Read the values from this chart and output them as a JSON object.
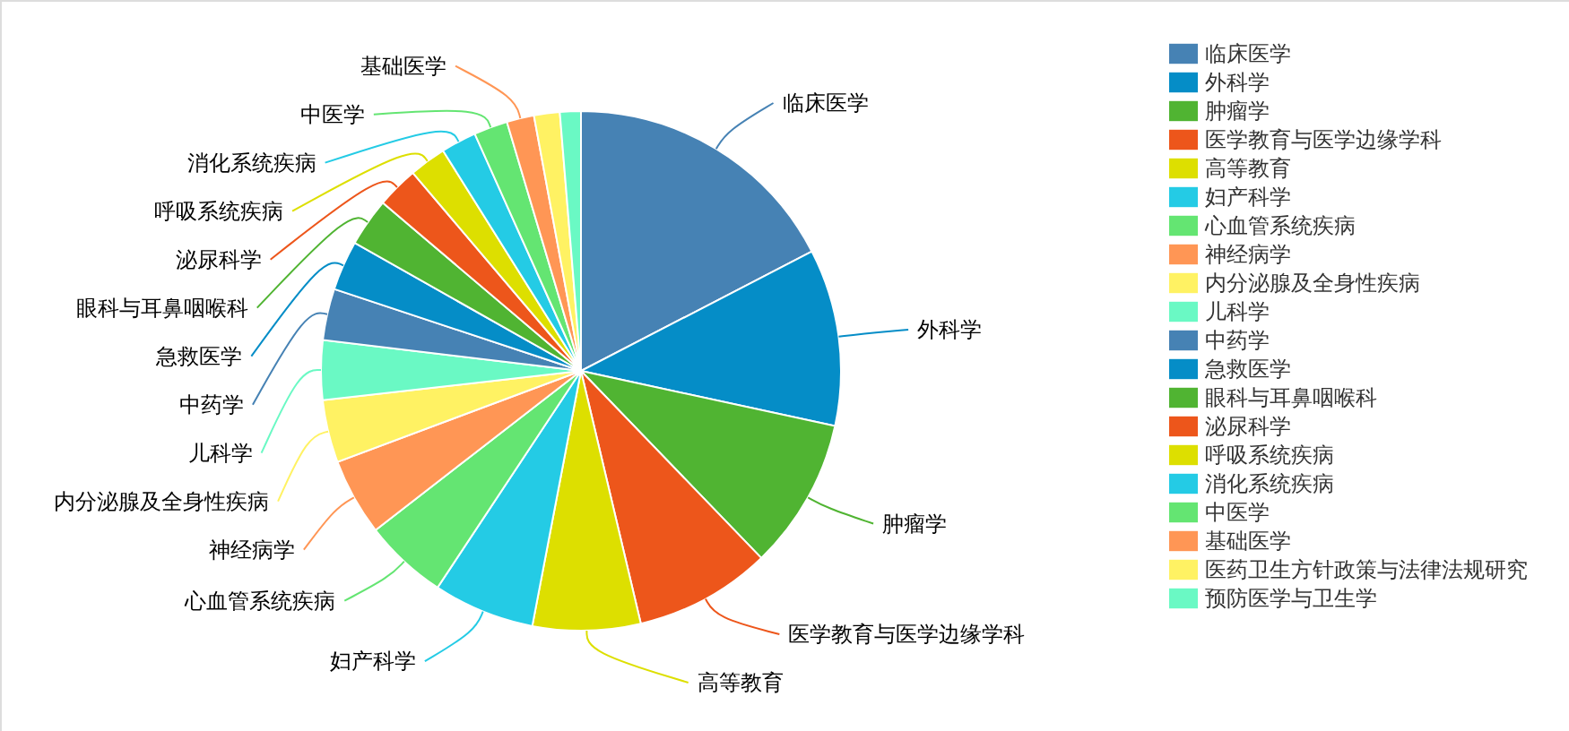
{
  "chart_data": {
    "type": "pie",
    "categories": [
      "临床医学",
      "外科学",
      "肿瘤学",
      "医学教育与医学边缘学科",
      "高等教育",
      "妇产科学",
      "心血管系统疾病",
      "神经病学",
      "内分泌腺及全身性疾病",
      "儿科学",
      "中药学",
      "急救医学",
      "眼科与耳鼻咽喉科",
      "泌尿科学",
      "呼吸系统疾病",
      "消化系统疾病",
      "中医学",
      "基础医学",
      "医药卫生方针政策与法律法规研究",
      "预防医学与卫生学"
    ],
    "values": [
      17.4,
      11.0,
      9.4,
      8.5,
      6.7,
      6.3,
      5.2,
      4.8,
      3.9,
      3.7,
      3.2,
      3.1,
      3.0,
      2.6,
      2.3,
      2.2,
      2.1,
      1.7,
      1.6,
      1.3
    ],
    "colors": [
      "#4682b4",
      "#058dc7",
      "#50b432",
      "#ed561b",
      "#dddf00",
      "#24cbe5",
      "#64e572",
      "#ff9655",
      "#fff263",
      "#6af9c4",
      "#4682b4",
      "#058dc7",
      "#50b432",
      "#ed561b",
      "#dddf00",
      "#24cbe5",
      "#64e572",
      "#ff9655",
      "#fff263",
      "#6af9c4"
    ],
    "legend": "top right"
  }
}
